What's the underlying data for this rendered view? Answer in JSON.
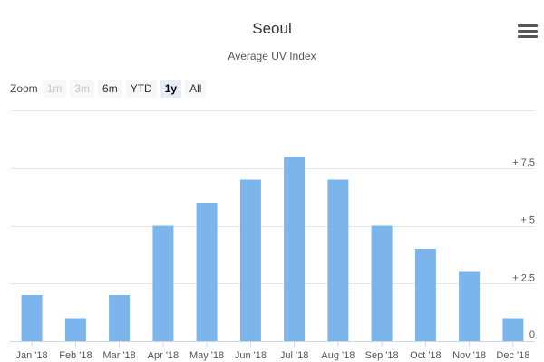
{
  "header": {
    "title": "Seoul",
    "subtitle": "Average UV Index"
  },
  "zoom": {
    "label": "Zoom",
    "buttons": [
      {
        "label": "1m",
        "state": "disabled"
      },
      {
        "label": "3m",
        "state": "disabled"
      },
      {
        "label": "6m",
        "state": "normal"
      },
      {
        "label": "YTD",
        "state": "normal"
      },
      {
        "label": "1y",
        "state": "active"
      },
      {
        "label": "All",
        "state": "normal"
      }
    ]
  },
  "menu": {
    "icon": "hamburger-menu-icon"
  },
  "colors": {
    "bar": "#7cb5ec",
    "grid": "#e6e6e6",
    "axis": "#ccd6eb"
  },
  "chart_data": {
    "type": "bar",
    "title": "Seoul",
    "subtitle": "Average UV Index",
    "categories": [
      "Jan '18",
      "Feb '18",
      "Mar '18",
      "Apr '18",
      "May '18",
      "Jun '18",
      "Jul '18",
      "Aug '18",
      "Sep '18",
      "Oct '18",
      "Nov '18",
      "Dec '18"
    ],
    "values": [
      2,
      1,
      2,
      5,
      6,
      7,
      8,
      7,
      5,
      4,
      3,
      1
    ],
    "ylim": [
      0,
      10
    ],
    "yticks": [
      0,
      2.5,
      5,
      7.5
    ],
    "ytick_labels": [
      "0",
      "+ 2.5",
      "+ 5",
      "+ 7.5"
    ],
    "yaxis_side": "right",
    "grid": true,
    "legend": "none"
  }
}
